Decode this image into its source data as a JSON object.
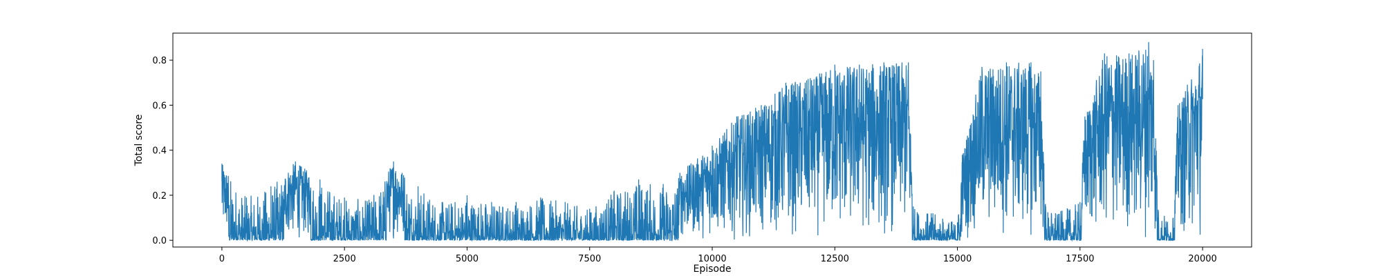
{
  "chart_data": {
    "type": "line",
    "title": "",
    "xlabel": "Episode",
    "ylabel": "Total score",
    "xlim": [
      -1000,
      21000
    ],
    "ylim": [
      -0.03,
      0.92
    ],
    "x_ticks": [
      0,
      2500,
      5000,
      7500,
      10000,
      12500,
      15000,
      17500,
      20000
    ],
    "x_tick_labels": [
      "0",
      "2500",
      "5000",
      "7500",
      "10000",
      "12500",
      "15000",
      "17500",
      "20000"
    ],
    "y_ticks": [
      0.0,
      0.2,
      0.4,
      0.6,
      0.8
    ],
    "y_tick_labels": [
      "0.0",
      "0.2",
      "0.4",
      "0.6",
      "0.8"
    ],
    "grid": false,
    "line_color": "#1f77b4",
    "series": [
      {
        "x": [
          0,
          500,
          1000,
          1500,
          2000,
          2500,
          3000,
          3500,
          4000,
          4500,
          5000,
          5500,
          6000,
          6500,
          7000,
          7500,
          8000,
          8500,
          9000,
          9500,
          10000,
          10500,
          11000,
          11500,
          12000,
          12500,
          13000,
          13500,
          14000,
          14100,
          14500,
          15000,
          15100,
          15500,
          16000,
          16500,
          16700,
          16800,
          17000,
          17500,
          17600,
          18000,
          18500,
          18900,
          19000,
          19100,
          19400,
          19500,
          20000
        ],
        "y_max": [
          0.34,
          0.19,
          0.24,
          0.35,
          0.27,
          0.19,
          0.18,
          0.35,
          0.24,
          0.17,
          0.2,
          0.17,
          0.17,
          0.19,
          0.17,
          0.14,
          0.22,
          0.27,
          0.25,
          0.33,
          0.42,
          0.55,
          0.6,
          0.7,
          0.72,
          0.78,
          0.78,
          0.79,
          0.79,
          0.15,
          0.12,
          0.08,
          0.38,
          0.77,
          0.79,
          0.79,
          0.75,
          0.15,
          0.12,
          0.17,
          0.55,
          0.83,
          0.83,
          0.88,
          0.8,
          0.13,
          0.1,
          0.6,
          0.85
        ],
        "y_min": [
          0.0,
          0.0,
          0.0,
          0.0,
          0.0,
          0.0,
          0.0,
          0.0,
          0.0,
          0.0,
          0.0,
          0.0,
          0.0,
          0.0,
          0.0,
          0.0,
          0.0,
          0.0,
          0.0,
          0.0,
          0.0,
          0.0,
          0.0,
          0.0,
          0.0,
          0.0,
          0.0,
          0.0,
          0.0,
          0.0,
          0.0,
          0.0,
          0.0,
          0.0,
          0.0,
          0.0,
          0.0,
          0.0,
          0.0,
          0.0,
          0.0,
          0.0,
          0.0,
          0.0,
          0.0,
          0.0,
          0.0,
          0.0,
          0.0
        ]
      }
    ]
  }
}
